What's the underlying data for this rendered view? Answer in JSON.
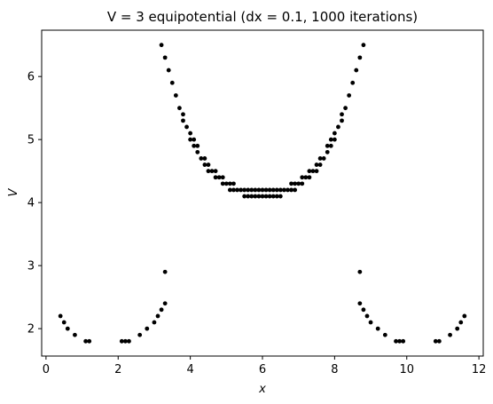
{
  "chart_data": {
    "type": "scatter",
    "title": "V = 3 equipotential (dx = 0.1, 1000 iterations)",
    "xlabel": "x",
    "ylabel": "V",
    "xlim": [
      -0.12,
      12.12
    ],
    "ylim": [
      1.565,
      6.735
    ],
    "xticks": [
      0,
      2,
      4,
      6,
      8,
      10,
      12
    ],
    "yticks": [
      2,
      3,
      4,
      5,
      6
    ],
    "grid": false,
    "marker_color": "#000000",
    "series": [
      {
        "points": [
          [
            0.4,
            2.2
          ],
          [
            0.5,
            2.1
          ],
          [
            0.6,
            2.0
          ],
          [
            0.8,
            1.9
          ],
          [
            1.1,
            1.8
          ],
          [
            1.2,
            1.8
          ],
          [
            2.1,
            1.8
          ],
          [
            2.2,
            1.8
          ],
          [
            2.3,
            1.8
          ],
          [
            2.6,
            1.9
          ],
          [
            2.8,
            2.0
          ],
          [
            3.0,
            2.1
          ],
          [
            3.1,
            2.2
          ],
          [
            3.2,
            2.3
          ],
          [
            3.3,
            2.4
          ],
          [
            3.3,
            2.9
          ],
          [
            3.2,
            6.5
          ],
          [
            3.3,
            6.3
          ],
          [
            3.4,
            6.1
          ],
          [
            3.5,
            5.9
          ],
          [
            3.6,
            5.7
          ],
          [
            3.7,
            5.5
          ],
          [
            3.8,
            5.4
          ],
          [
            3.8,
            5.3
          ],
          [
            3.9,
            5.2
          ],
          [
            4.0,
            5.1
          ],
          [
            4.0,
            5.0
          ],
          [
            4.1,
            5.0
          ],
          [
            4.1,
            4.9
          ],
          [
            4.2,
            4.9
          ],
          [
            4.2,
            4.8
          ],
          [
            4.3,
            4.7
          ],
          [
            4.4,
            4.7
          ],
          [
            4.4,
            4.6
          ],
          [
            4.5,
            4.6
          ],
          [
            4.5,
            4.5
          ],
          [
            4.6,
            4.5
          ],
          [
            4.7,
            4.5
          ],
          [
            4.7,
            4.4
          ],
          [
            4.8,
            4.4
          ],
          [
            4.9,
            4.4
          ],
          [
            4.9,
            4.3
          ],
          [
            5.0,
            4.3
          ],
          [
            5.1,
            4.3
          ],
          [
            5.2,
            4.3
          ],
          [
            5.1,
            4.2
          ],
          [
            5.2,
            4.2
          ],
          [
            5.3,
            4.2
          ],
          [
            5.4,
            4.2
          ],
          [
            5.5,
            4.2
          ],
          [
            5.6,
            4.2
          ],
          [
            5.7,
            4.2
          ],
          [
            5.8,
            4.2
          ],
          [
            5.9,
            4.2
          ],
          [
            6.0,
            4.2
          ],
          [
            6.1,
            4.2
          ],
          [
            6.2,
            4.2
          ],
          [
            6.3,
            4.2
          ],
          [
            6.4,
            4.2
          ],
          [
            6.5,
            4.2
          ],
          [
            6.6,
            4.2
          ],
          [
            6.7,
            4.2
          ],
          [
            6.8,
            4.2
          ],
          [
            6.9,
            4.2
          ],
          [
            5.5,
            4.1
          ],
          [
            5.6,
            4.1
          ],
          [
            5.7,
            4.1
          ],
          [
            5.8,
            4.1
          ],
          [
            5.9,
            4.1
          ],
          [
            6.0,
            4.1
          ],
          [
            6.1,
            4.1
          ],
          [
            6.2,
            4.1
          ],
          [
            6.3,
            4.1
          ],
          [
            6.4,
            4.1
          ],
          [
            6.5,
            4.1
          ],
          [
            6.8,
            4.3
          ],
          [
            6.9,
            4.3
          ],
          [
            7.0,
            4.3
          ],
          [
            7.1,
            4.3
          ],
          [
            7.1,
            4.4
          ],
          [
            7.2,
            4.4
          ],
          [
            7.3,
            4.4
          ],
          [
            7.3,
            4.5
          ],
          [
            7.4,
            4.5
          ],
          [
            7.5,
            4.5
          ],
          [
            7.5,
            4.6
          ],
          [
            7.6,
            4.6
          ],
          [
            7.6,
            4.7
          ],
          [
            7.7,
            4.7
          ],
          [
            7.8,
            4.8
          ],
          [
            7.8,
            4.9
          ],
          [
            7.9,
            4.9
          ],
          [
            7.9,
            5.0
          ],
          [
            8.0,
            5.0
          ],
          [
            8.0,
            5.1
          ],
          [
            8.1,
            5.2
          ],
          [
            8.2,
            5.3
          ],
          [
            8.2,
            5.4
          ],
          [
            8.3,
            5.5
          ],
          [
            8.4,
            5.7
          ],
          [
            8.5,
            5.9
          ],
          [
            8.6,
            6.1
          ],
          [
            8.7,
            6.3
          ],
          [
            8.8,
            6.5
          ],
          [
            8.7,
            2.9
          ],
          [
            8.7,
            2.4
          ],
          [
            8.8,
            2.3
          ],
          [
            8.9,
            2.2
          ],
          [
            9.0,
            2.1
          ],
          [
            9.2,
            2.0
          ],
          [
            9.4,
            1.9
          ],
          [
            9.7,
            1.8
          ],
          [
            9.8,
            1.8
          ],
          [
            9.9,
            1.8
          ],
          [
            10.8,
            1.8
          ],
          [
            10.9,
            1.8
          ],
          [
            11.2,
            1.9
          ],
          [
            11.4,
            2.0
          ],
          [
            11.5,
            2.1
          ],
          [
            11.6,
            2.2
          ]
        ]
      }
    ]
  }
}
